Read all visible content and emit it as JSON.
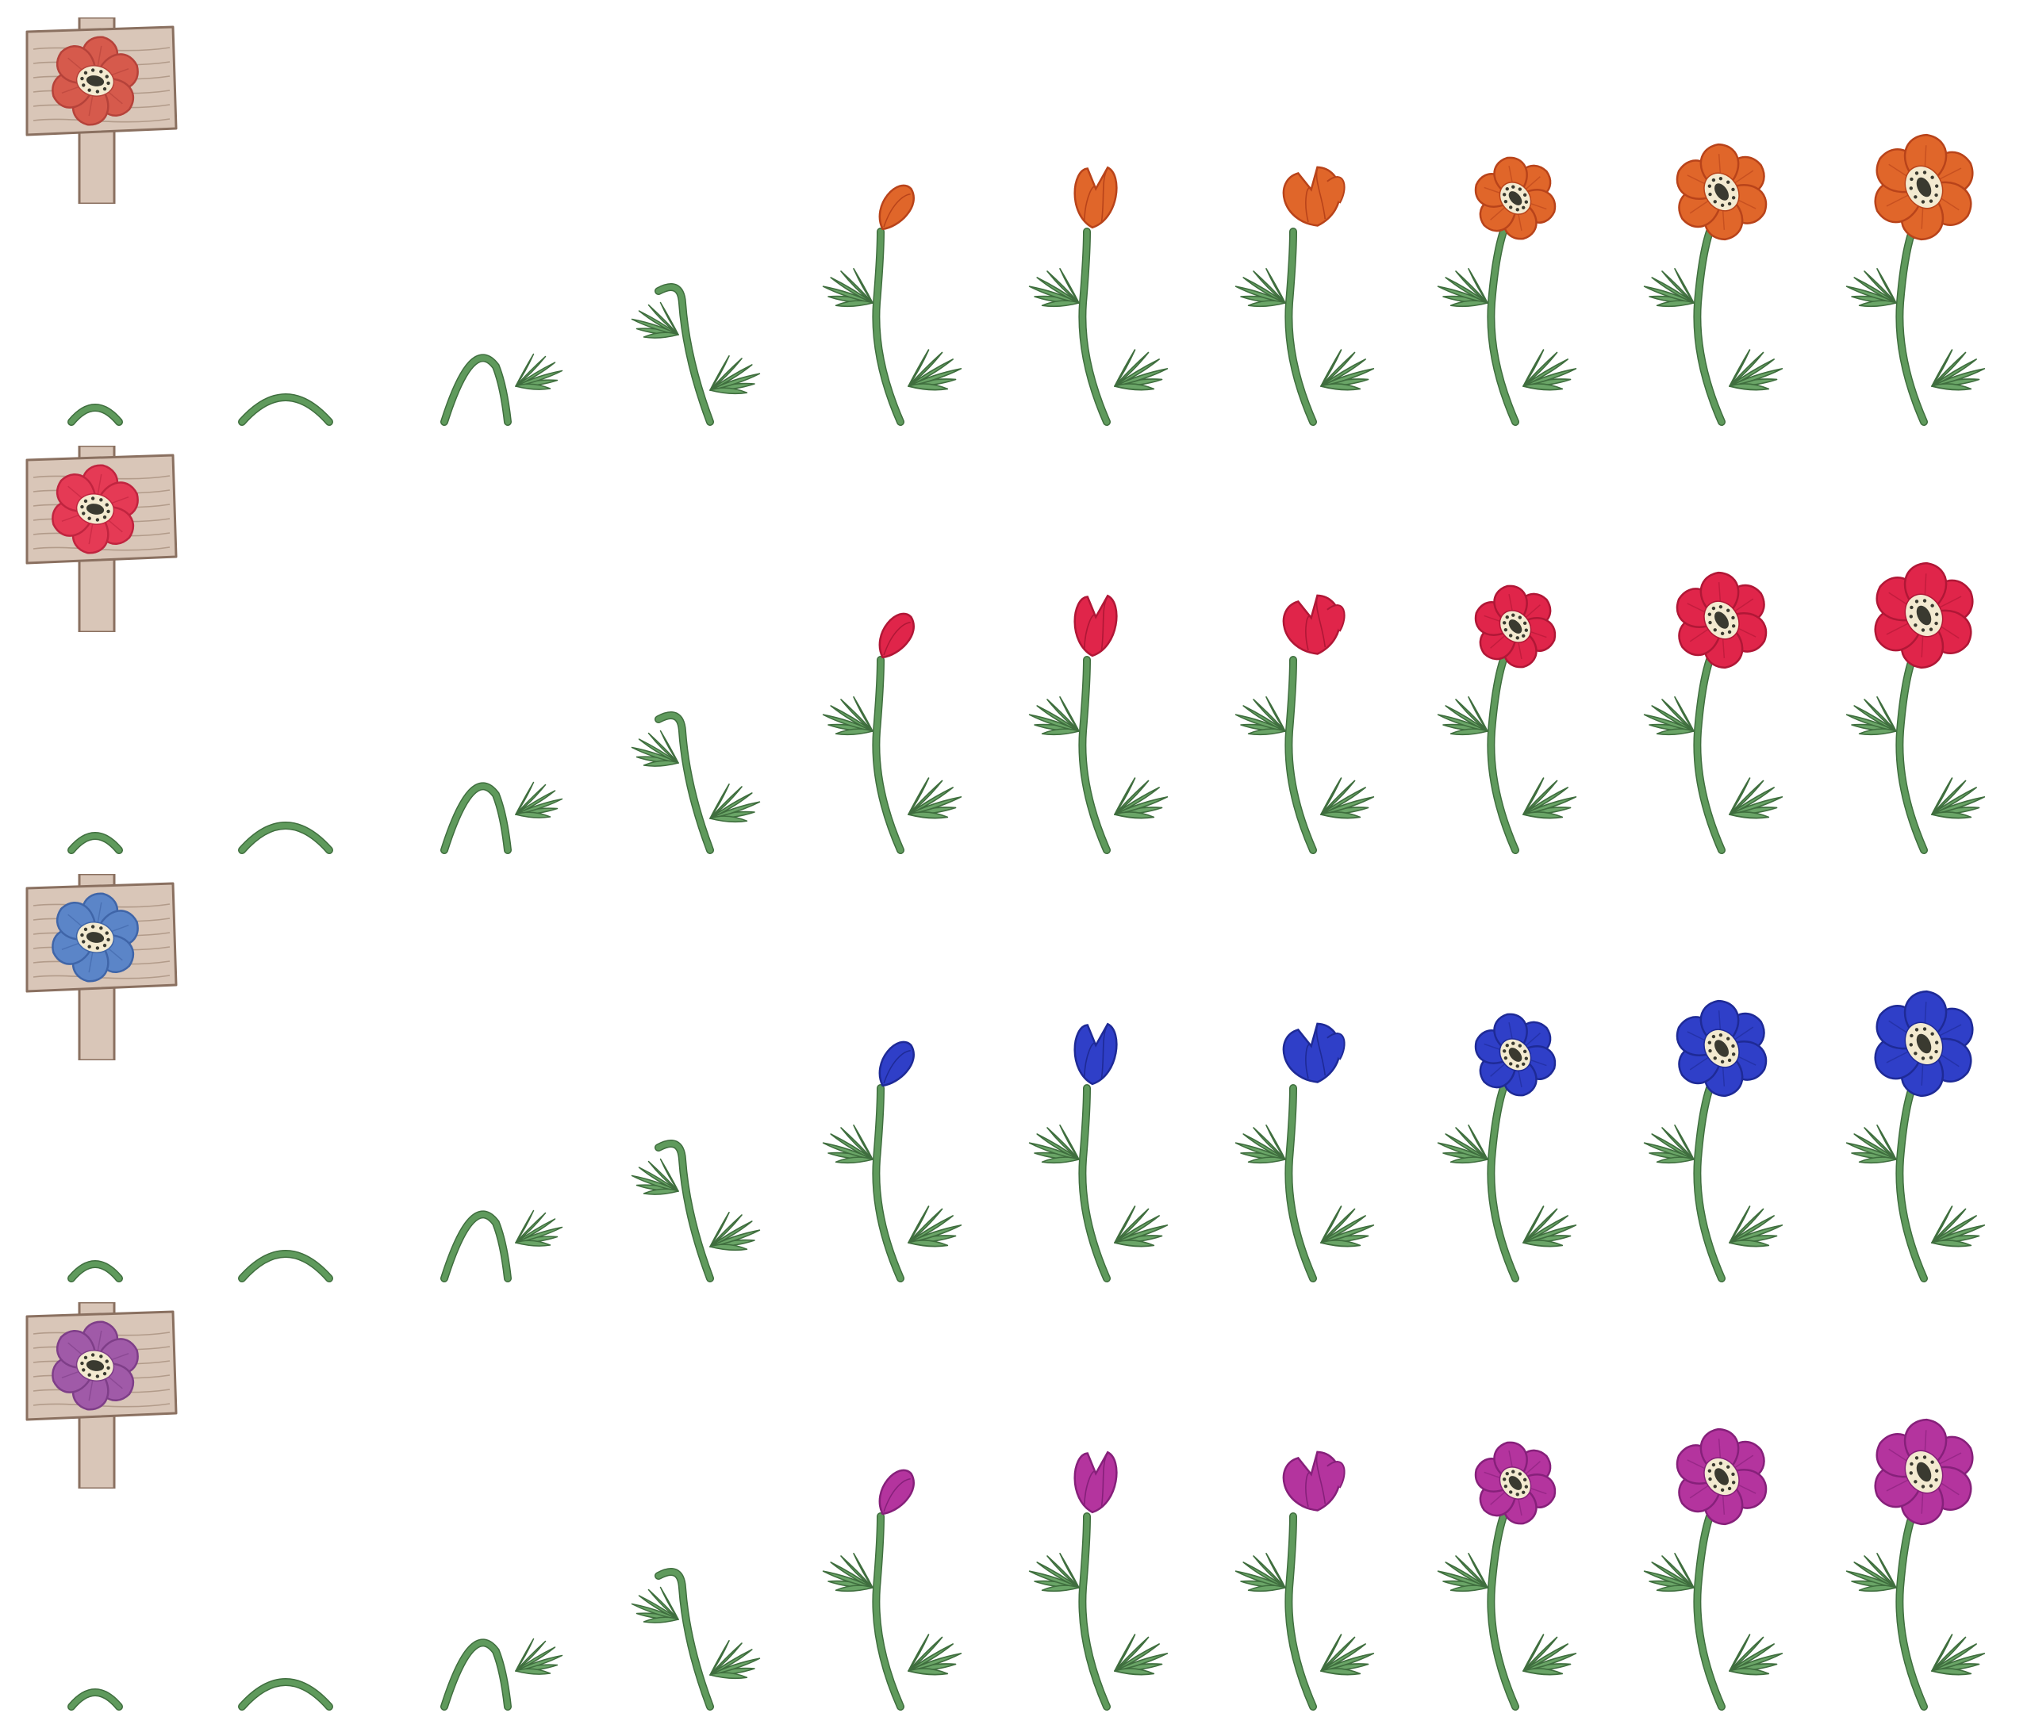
{
  "sprite_sheet": {
    "variants": [
      {
        "id": "orange",
        "petal": "#e0662a",
        "petal_dark": "#b8431a",
        "sign_petal": "#d65a4c",
        "sign_petal_dark": "#b5423a"
      },
      {
        "id": "red",
        "petal": "#e0254a",
        "petal_dark": "#b01736",
        "sign_petal": "#e53a55",
        "sign_petal_dark": "#c0243f"
      },
      {
        "id": "blue",
        "petal": "#2f3fc8",
        "petal_dark": "#1e2a96",
        "sign_petal": "#5b85c8",
        "sign_petal_dark": "#3f65a8"
      },
      {
        "id": "purple",
        "petal": "#b4349e",
        "petal_dark": "#86207a",
        "sign_petal": "#a05aa8",
        "sign_petal_dark": "#7e3e88"
      }
    ],
    "growth_stages": [
      "sprout",
      "arch",
      "arch-leaves",
      "hook",
      "bud",
      "tulip",
      "half-open",
      "open-small",
      "open-medium",
      "open-full"
    ],
    "colors": {
      "stem": "#5f9a5c",
      "stem_dark": "#3f6e3e",
      "leaf": "#6aa567",
      "leaf_dark": "#3f6e3e",
      "wood": "#d9c6b8",
      "wood_dark": "#a8907e",
      "wood_line": "#8a7060",
      "center": "#f3ead0",
      "center_dark": "#3a3a30"
    }
  }
}
